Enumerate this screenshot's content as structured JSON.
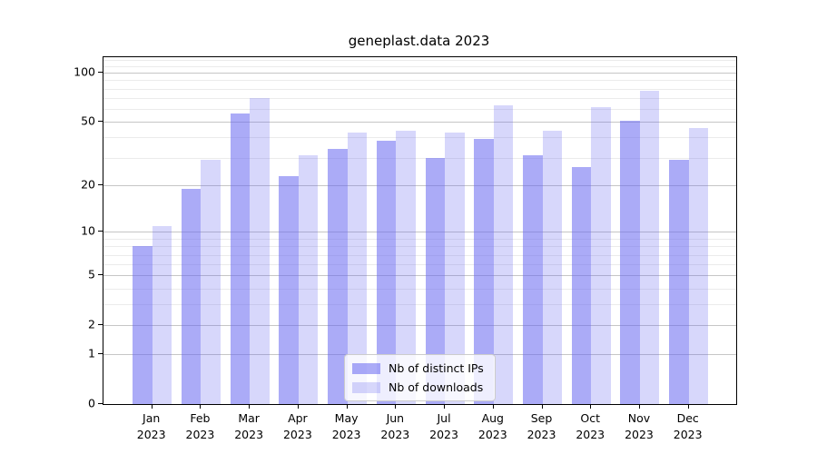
{
  "title": "geneplast.data 2023",
  "chart_data": {
    "type": "bar",
    "title": "geneplast.data 2023",
    "xlabel": "",
    "ylabel": "",
    "categories": [
      "Jan",
      "Feb",
      "Mar",
      "Apr",
      "May",
      "Jun",
      "Jul",
      "Aug",
      "Sep",
      "Oct",
      "Nov",
      "Dec"
    ],
    "year": "2023",
    "series": [
      {
        "name": "Nb of distinct IPs",
        "key": "distinct-ips",
        "color": "#6666f0",
        "alpha": 0.55,
        "values": [
          8,
          19,
          56,
          23,
          34,
          38,
          30,
          39,
          31,
          26,
          51,
          29
        ]
      },
      {
        "name": "Nb of downloads",
        "key": "downloads",
        "color": "#6666f0",
        "alpha": 0.26,
        "values": [
          11,
          29,
          70,
          31,
          43,
          44,
          43,
          63,
          44,
          62,
          78,
          46
        ]
      }
    ],
    "yscale": "log1p",
    "ylim": [
      0,
      125
    ],
    "yticks": [
      0,
      1,
      2,
      5,
      10,
      20,
      50,
      100
    ],
    "minor_gridlines": [
      3,
      4,
      6,
      7,
      8,
      9,
      30,
      40,
      60,
      70,
      80,
      90,
      110,
      120
    ],
    "grid": true,
    "legend_position": "bottom-center",
    "colors": {
      "bar_dark_composite": "#abaaf8",
      "bar_light_composite": "#d8d8f8",
      "grid_major": "#c6c6c6",
      "grid_minor": "#ebebeb",
      "axis": "#000000",
      "legend_border": "#cccccc"
    }
  }
}
